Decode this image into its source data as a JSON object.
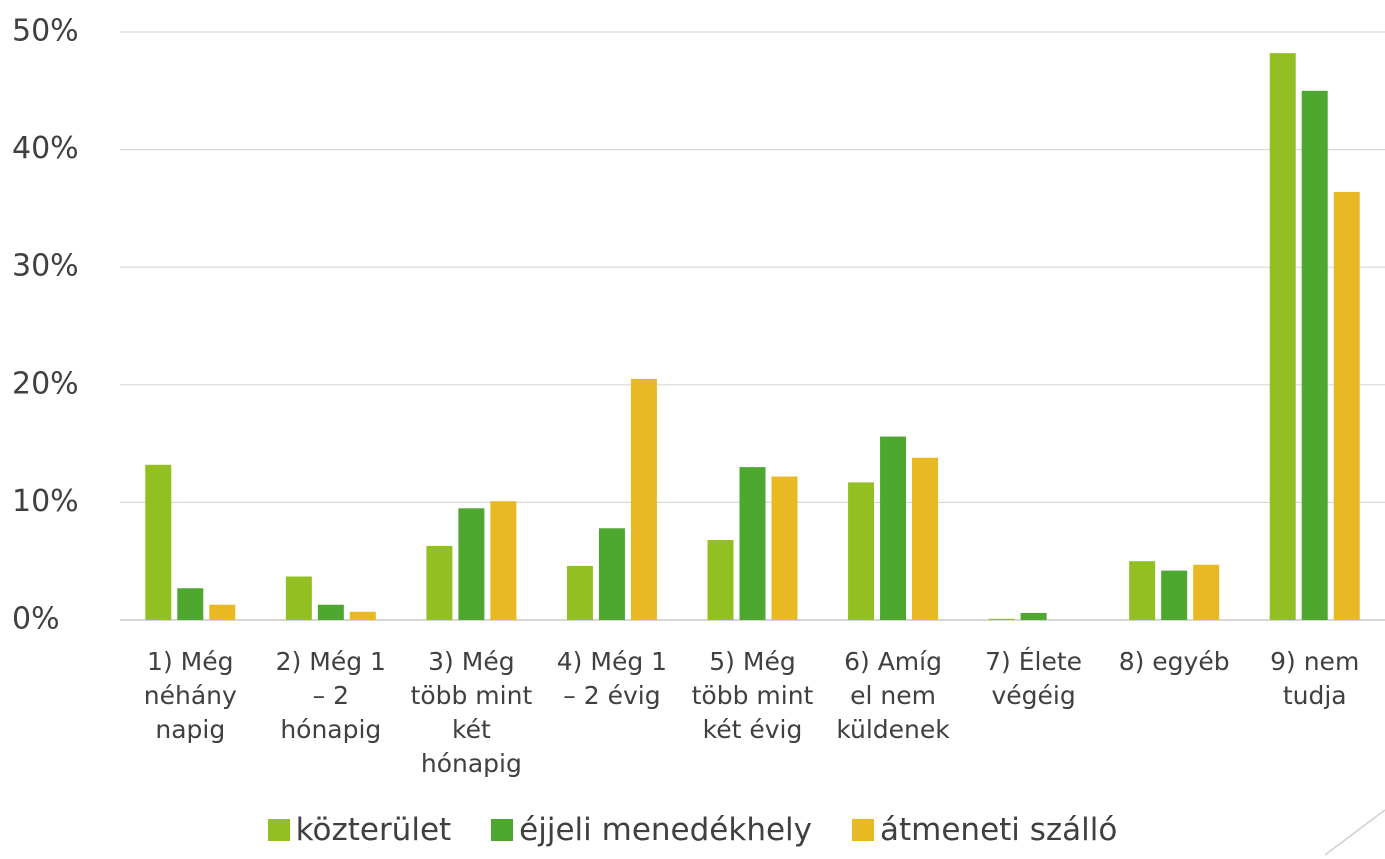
{
  "chart_data": {
    "type": "bar",
    "categories": [
      "1) Még néhány napig",
      "2) Még 1 – 2 hónapig",
      "3) Még több mint két hónapig",
      "4) Még 1 – 2 évig",
      "5) Még több mint két évig",
      "6) Amíg el nem küldenek",
      "7) Élete végéig",
      "8) egyéb",
      "9) nem tudja"
    ],
    "series": [
      {
        "name": "közterület",
        "color": "#92c022",
        "values": [
          13.2,
          3.7,
          6.3,
          4.6,
          6.8,
          11.7,
          0.1,
          5.0,
          48.2
        ]
      },
      {
        "name": "éjjeli menedékhely",
        "color": "#4ea72e",
        "values": [
          2.7,
          1.3,
          9.5,
          7.8,
          13.0,
          15.6,
          0.6,
          4.2,
          45.0
        ]
      },
      {
        "name": "átmeneti szálló",
        "color": "#e8b923",
        "values": [
          1.3,
          0.7,
          10.1,
          20.5,
          12.2,
          13.8,
          0,
          4.7,
          36.4
        ]
      }
    ],
    "ylim": [
      0,
      50
    ],
    "yticks": [
      {
        "value": 0,
        "label": "0%"
      },
      {
        "value": 10,
        "label": "10%"
      },
      {
        "value": 20,
        "label": "20%"
      },
      {
        "value": 30,
        "label": "30%"
      },
      {
        "value": 40,
        "label": "40%"
      },
      {
        "value": 50,
        "label": "50%"
      }
    ],
    "grid": true,
    "legend": "bottom"
  }
}
